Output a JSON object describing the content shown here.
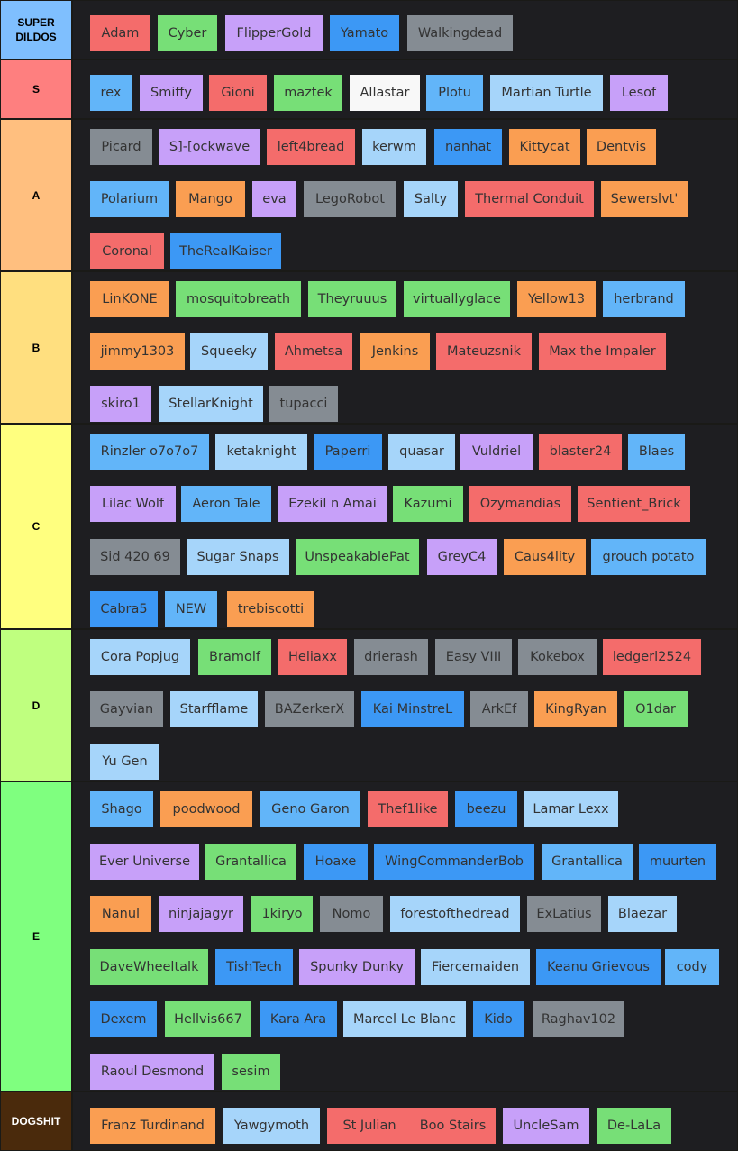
{
  "tiers": [
    {
      "label": "SUPER\nDILDOS",
      "color": "#7fbffe",
      "text_color": "#000000",
      "rows": [
        [
          [
            "Adam",
            "red"
          ],
          [
            "Cyber",
            "green"
          ],
          [
            "FlipperGold",
            "purple"
          ],
          [
            "Yamato",
            "blue"
          ],
          [
            "Walkingdead",
            "gray"
          ]
        ]
      ]
    },
    {
      "label": "S",
      "color": "#fe7f7f",
      "text_color": "#000000",
      "rows": [
        [
          [
            "rex",
            "lblue"
          ],
          [
            "Smiffy",
            "purple"
          ],
          [
            "Gioni",
            "red"
          ],
          [
            "maztek",
            "green"
          ],
          [
            "Allastar",
            "white"
          ],
          [
            "Plotu",
            "lblue"
          ],
          [
            "Martian Turtle",
            "pale"
          ],
          [
            "Lesof",
            "purple"
          ]
        ]
      ]
    },
    {
      "label": "A",
      "color": "#ffbf7f",
      "text_color": "#000000",
      "rows": [
        [
          [
            "Picard",
            "gray"
          ],
          [
            "S]-[ockwave",
            "purple"
          ],
          [
            "left4bread",
            "red"
          ],
          [
            "kerwm",
            "pale"
          ],
          [
            "nanhat",
            "blue"
          ],
          [
            "Kittycat",
            "orange"
          ],
          [
            "Dentvis",
            "orange"
          ]
        ],
        [
          [
            "Polarium",
            "lblue"
          ],
          [
            "Mango",
            "orange"
          ],
          [
            "eva",
            "purple"
          ],
          [
            "LegoRobot",
            "gray"
          ],
          [
            "Salty",
            "pale"
          ],
          [
            "Thermal Conduit",
            "red"
          ],
          [
            "Sewerslvt'",
            "orange"
          ]
        ],
        [
          [
            "Coronal",
            "red"
          ],
          [
            "TheRealKaiser",
            "blue"
          ]
        ]
      ]
    },
    {
      "label": "B",
      "color": "#ffdf7f",
      "text_color": "#000000",
      "rows": [
        [
          [
            "LinKONE",
            "orange"
          ],
          [
            "mosquitobreath",
            "green"
          ],
          [
            "Theyruuus",
            "green"
          ],
          [
            "virtuallyglace",
            "green"
          ],
          [
            "Yellow13",
            "orange"
          ],
          [
            "herbrand",
            "lblue"
          ]
        ],
        [
          [
            "jimmy1303",
            "orange"
          ],
          [
            "Squeeky",
            "pale"
          ],
          [
            "Ahmetsa",
            "red"
          ],
          [
            "Jenkins",
            "orange"
          ],
          [
            "Mateuzsnik",
            "red"
          ],
          [
            "Max the Impaler",
            "red"
          ]
        ],
        [
          [
            "skiro1",
            "purple"
          ],
          [
            "StellarKnight",
            "pale"
          ],
          [
            "tupacci",
            "gray"
          ]
        ]
      ]
    },
    {
      "label": "C",
      "color": "#ffff7f",
      "text_color": "#000000",
      "rows": [
        [
          [
            "Rinzler o7o7o7",
            "lblue"
          ],
          [
            "ketaknight",
            "pale"
          ],
          [
            "Paperri",
            "blue"
          ],
          [
            "quasar",
            "pale"
          ],
          [
            "Vuldriel",
            "purple"
          ],
          [
            "blaster24",
            "red"
          ],
          [
            "Blaes",
            "lblue"
          ]
        ],
        [
          [
            "Lilac Wolf",
            "purple"
          ],
          [
            "Aeron Tale",
            "lblue"
          ],
          [
            "Ezekil n Amai",
            "purple"
          ],
          [
            "Kazumi",
            "green"
          ],
          [
            "Ozymandias",
            "red"
          ],
          [
            "Sentient_Brick",
            "red"
          ]
        ],
        [
          [
            "Sid 420 69",
            "gray"
          ],
          [
            "Sugar Snaps",
            "pale"
          ],
          [
            "UnspeakablePat",
            "green"
          ],
          [
            "GreyC4",
            "purple"
          ],
          [
            "Caus4lity",
            "orange"
          ],
          [
            "grouch potato",
            "lblue"
          ]
        ],
        [
          [
            "Cabra5",
            "blue"
          ],
          [
            "NEW",
            "lblue"
          ],
          [
            "trebiscotti",
            "orange"
          ]
        ]
      ]
    },
    {
      "label": "D",
      "color": "#bfff7f",
      "text_color": "#000000",
      "rows": [
        [
          [
            "Cora Popjug",
            "pale"
          ],
          [
            "Bramolf",
            "green"
          ],
          [
            "Heliaxx",
            "red"
          ],
          [
            "drierash",
            "gray"
          ],
          [
            "Easy VIII",
            "gray"
          ],
          [
            "Kokebox",
            "gray"
          ],
          [
            "ledgerl2524",
            "red"
          ]
        ],
        [
          [
            "Gayvian",
            "gray"
          ],
          [
            "Starfflame",
            "pale"
          ],
          [
            "BAZerkerX",
            "gray"
          ],
          [
            "Kai MinstreL",
            "blue"
          ],
          [
            "ArkEf",
            "gray"
          ],
          [
            "KingRyan",
            "orange"
          ],
          [
            "O1dar",
            "green"
          ]
        ],
        [
          [
            "Yu Gen",
            "pale"
          ]
        ]
      ]
    },
    {
      "label": "E",
      "color": "#7fff7f",
      "text_color": "#000000",
      "rows": [
        [
          [
            "Shago",
            "lblue"
          ],
          [
            "poodwood",
            "orange"
          ],
          [
            "Geno Garon",
            "lblue"
          ],
          [
            "Thef1like",
            "red"
          ],
          [
            "beezu",
            "blue"
          ],
          [
            "Lamar Lexx",
            "pale"
          ]
        ],
        [
          [
            "Ever Universe",
            "purple"
          ],
          [
            "Grantallica",
            "green"
          ],
          [
            "Hoaxe",
            "blue"
          ],
          [
            "WingCommanderBob",
            "blue"
          ],
          [
            "Grantallica",
            "lblue"
          ],
          [
            "muurten",
            "blue"
          ]
        ],
        [
          [
            "Nanul",
            "orange"
          ],
          [
            "ninjajagyr",
            "purple"
          ],
          [
            "1kiryo",
            "green"
          ],
          [
            "Nomo",
            "gray"
          ],
          [
            "forestofthedread",
            "pale"
          ],
          [
            "ExLatius",
            "gray"
          ],
          [
            "Blaezar",
            "pale"
          ]
        ],
        [
          [
            "DaveWheeltalk",
            "green"
          ],
          [
            "TishTech",
            "blue"
          ],
          [
            "Spunky Dunky",
            "purple"
          ],
          [
            "Fiercemaiden",
            "pale"
          ],
          [
            "Keanu Grievous",
            "blue"
          ],
          [
            "cody",
            "lblue"
          ]
        ],
        [
          [
            "Dexem",
            "blue"
          ],
          [
            "Hellvis667",
            "green"
          ],
          [
            "Kara Ara",
            "blue"
          ],
          [
            "Marcel Le Blanc",
            "pale"
          ],
          [
            "Kido",
            "blue"
          ],
          [
            "Raghav102",
            "gray"
          ]
        ],
        [
          [
            "Raoul Desmond",
            "purple"
          ],
          [
            "sesim",
            "green"
          ]
        ]
      ]
    },
    {
      "label": "DOGSHIT",
      "color": "#4a2a0c",
      "text_color": "#ffffff",
      "rows": [
        [
          [
            "Franz Turdinand",
            "orange"
          ],
          [
            "Yawgymoth",
            "pale"
          ],
          [
            "St Julian",
            "red"
          ],
          [
            "Boo Stairs",
            "red"
          ],
          [
            "UncleSam",
            "purple"
          ],
          [
            "De-LaLa",
            "green"
          ]
        ]
      ]
    }
  ]
}
